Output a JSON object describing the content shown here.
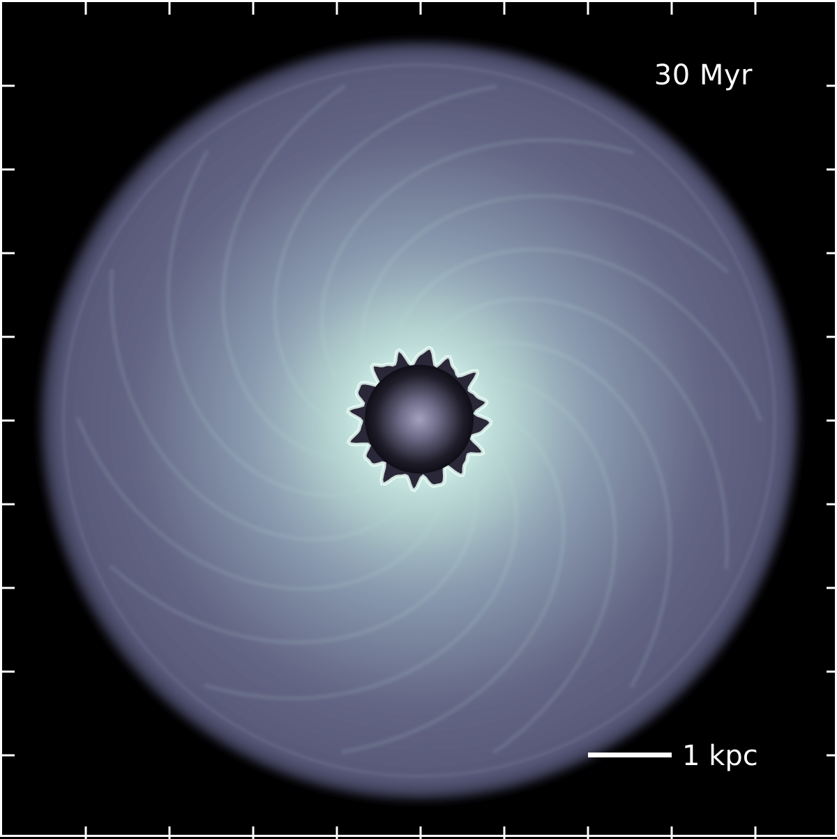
{
  "time_label": "30 Myr",
  "scale_bar": {
    "label": "1 kpc"
  },
  "colors": {
    "background": "#000000",
    "frame": "#ffffff",
    "disk_outer": "#55577a",
    "disk_mid": "#7d8aa2",
    "ring_bright": "#cfece6",
    "cavity": "#111018",
    "core_glow": "#9a98b4"
  },
  "axes": {
    "ticks_per_side": 9,
    "tick_labels": "none"
  }
}
